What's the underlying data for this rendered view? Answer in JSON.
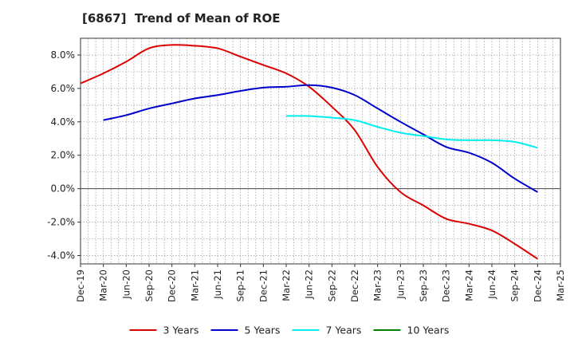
{
  "chart_data": {
    "type": "line",
    "title": "[6867]  Trend of Mean of ROE",
    "xlabel": "",
    "ylabel": "",
    "x_ticks": [
      "Dec-19",
      "Mar-20",
      "Jun-20",
      "Sep-20",
      "Dec-20",
      "Mar-21",
      "Jun-21",
      "Sep-21",
      "Dec-21",
      "Mar-22",
      "Jun-22",
      "Sep-22",
      "Dec-22",
      "Mar-23",
      "Jun-23",
      "Sep-23",
      "Dec-23",
      "Mar-24",
      "Jun-24",
      "Sep-24",
      "Dec-24",
      "Mar-25"
    ],
    "y_ticks": [
      -4.0,
      -2.0,
      0.0,
      2.0,
      4.0,
      6.0,
      8.0
    ],
    "y_tick_labels": [
      "-4.0%",
      "-2.0%",
      "0.0%",
      "2.0%",
      "4.0%",
      "6.0%",
      "8.0%"
    ],
    "ylim": [
      -4.5,
      9.0
    ],
    "y_unit": "%",
    "grid": true,
    "legend_position": "bottom",
    "series": [
      {
        "name": "3 Years",
        "color": "#dd0000",
        "x": [
          "Dec-19",
          "Mar-20",
          "Jun-20",
          "Sep-20",
          "Dec-20",
          "Mar-21",
          "Jun-21",
          "Sep-21",
          "Dec-21",
          "Mar-22",
          "Jun-22",
          "Sep-22",
          "Dec-22",
          "Mar-23",
          "Jun-23",
          "Sep-23",
          "Dec-23",
          "Mar-24",
          "Jun-24",
          "Sep-24",
          "Dec-24"
        ],
        "values": [
          6.3,
          6.9,
          7.6,
          8.4,
          8.6,
          8.55,
          8.4,
          7.9,
          7.4,
          6.9,
          6.1,
          4.9,
          3.5,
          1.3,
          -0.2,
          -1.0,
          -1.8,
          -2.1,
          -2.5,
          -3.3,
          -4.2
        ]
      },
      {
        "name": "5 Years",
        "color": "#0000cc",
        "x": [
          "Mar-20",
          "Jun-20",
          "Sep-20",
          "Dec-20",
          "Mar-21",
          "Jun-21",
          "Sep-21",
          "Dec-21",
          "Mar-22",
          "Jun-22",
          "Sep-22",
          "Dec-22",
          "Mar-23",
          "Jun-23",
          "Sep-23",
          "Dec-23",
          "Mar-24",
          "Jun-24",
          "Sep-24",
          "Dec-24"
        ],
        "values": [
          4.1,
          4.4,
          4.8,
          5.1,
          5.4,
          5.6,
          5.85,
          6.05,
          6.1,
          6.2,
          6.05,
          5.6,
          4.8,
          4.0,
          3.25,
          2.5,
          2.15,
          1.55,
          0.6,
          -0.2
        ]
      },
      {
        "name": "7 Years",
        "color": "#00eeee",
        "x": [
          "Mar-22",
          "Jun-22",
          "Sep-22",
          "Dec-22",
          "Mar-23",
          "Jun-23",
          "Sep-23",
          "Dec-23",
          "Mar-24",
          "Jun-24",
          "Sep-24",
          "Dec-24"
        ],
        "values": [
          4.35,
          4.35,
          4.25,
          4.1,
          3.7,
          3.35,
          3.15,
          2.95,
          2.9,
          2.9,
          2.8,
          2.45
        ]
      },
      {
        "name": "10 Years",
        "color": "#008000",
        "x": [],
        "values": []
      }
    ]
  }
}
